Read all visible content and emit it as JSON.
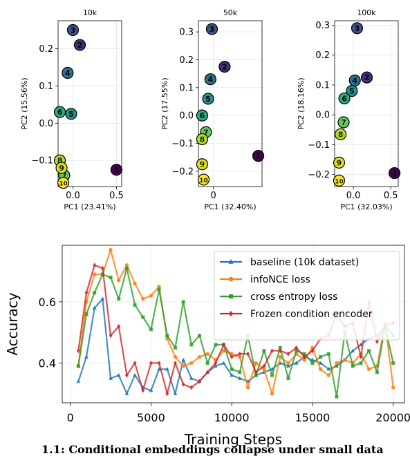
{
  "chart_data": [
    {
      "type": "scatter",
      "title": "10k",
      "xlabel": "PC1 (23.41%)",
      "ylabel": "PC2 (15.56%)",
      "xlim": [
        -0.17,
        0.56
      ],
      "ylim": [
        -0.17,
        0.275
      ],
      "xticks": [
        0,
        0.5
      ],
      "xtick_labels": [
        "0.0",
        "0.5"
      ],
      "yticks": [
        -0.1,
        0,
        0.1,
        0.2
      ],
      "ytick_labels": [
        "−0.1",
        "0.0",
        "0.1",
        "0.2"
      ],
      "grid": true,
      "points": [
        {
          "label": "1",
          "x": 0.5,
          "y": -0.125,
          "color": "#440154"
        },
        {
          "label": "2",
          "x": 0.08,
          "y": 0.21,
          "color": "#472d7b"
        },
        {
          "label": "3",
          "x": 0.0,
          "y": 0.25,
          "color": "#3b528b"
        },
        {
          "label": "4",
          "x": -0.06,
          "y": 0.135,
          "color": "#2c728e"
        },
        {
          "label": "5",
          "x": -0.02,
          "y": 0.025,
          "color": "#21918c"
        },
        {
          "label": "6",
          "x": -0.15,
          "y": 0.03,
          "color": "#28ae80"
        },
        {
          "label": "7",
          "x": -0.1,
          "y": -0.14,
          "color": "#5ec962"
        },
        {
          "label": "8",
          "x": -0.15,
          "y": -0.1,
          "color": "#addc30"
        },
        {
          "label": "9",
          "x": -0.13,
          "y": -0.12,
          "color": "#d8e219"
        },
        {
          "label": "10",
          "x": -0.11,
          "y": -0.16,
          "color": "#fde725"
        }
      ]
    },
    {
      "type": "scatter",
      "title": "50k",
      "xlabel": "PC1 (32.40%)",
      "ylabel": "PC2 (17.55%)",
      "xlim": [
        -0.2,
        0.65
      ],
      "ylim": [
        -0.255,
        0.34
      ],
      "xticks": [
        0
      ],
      "xtick_labels": [
        "0"
      ],
      "yticks": [
        -0.2,
        -0.1,
        0,
        0.1,
        0.2,
        0.3
      ],
      "ytick_labels": [
        "−0.2",
        "−0.1",
        "0.0",
        "0.1",
        "0.2",
        "0.3"
      ],
      "grid": true,
      "points": [
        {
          "label": "1",
          "x": 0.6,
          "y": -0.145,
          "color": "#440154"
        },
        {
          "label": "2",
          "x": 0.15,
          "y": 0.175,
          "color": "#472d7b"
        },
        {
          "label": "3",
          "x": -0.02,
          "y": 0.31,
          "color": "#3b528b"
        },
        {
          "label": "4",
          "x": -0.04,
          "y": 0.13,
          "color": "#2c728e"
        },
        {
          "label": "5",
          "x": -0.07,
          "y": 0.06,
          "color": "#21918c"
        },
        {
          "label": "6",
          "x": -0.15,
          "y": 0.0,
          "color": "#28ae80"
        },
        {
          "label": "7",
          "x": -0.1,
          "y": -0.06,
          "color": "#5ec962"
        },
        {
          "label": "8",
          "x": -0.15,
          "y": -0.085,
          "color": "#addc30"
        },
        {
          "label": "9",
          "x": -0.15,
          "y": -0.175,
          "color": "#d8e219"
        },
        {
          "label": "10",
          "x": -0.13,
          "y": -0.23,
          "color": "#fde725"
        }
      ]
    },
    {
      "type": "scatter",
      "title": "100k",
      "xlabel": "PC1 (32.03%)",
      "ylabel": "PC2 (18.16%)",
      "xlim": [
        -0.25,
        0.6
      ],
      "ylim": [
        -0.24,
        0.315
      ],
      "xticks": [
        0,
        0.5
      ],
      "xtick_labels": [
        "0.0",
        "0.5"
      ],
      "yticks": [
        -0.2,
        -0.1,
        0,
        0.1,
        0.2,
        0.3
      ],
      "ytick_labels": [
        "−0.2",
        "−0.1",
        "0.0",
        "0.1",
        "0.2",
        "0.3"
      ],
      "grid": true,
      "points": [
        {
          "label": "1",
          "x": 0.55,
          "y": -0.195,
          "color": "#440154"
        },
        {
          "label": "2",
          "x": 0.18,
          "y": 0.125,
          "color": "#472d7b"
        },
        {
          "label": "3",
          "x": 0.05,
          "y": 0.29,
          "color": "#3b528b"
        },
        {
          "label": "4",
          "x": 0.02,
          "y": 0.115,
          "color": "#2c728e"
        },
        {
          "label": "5",
          "x": -0.02,
          "y": 0.08,
          "color": "#21918c"
        },
        {
          "label": "6",
          "x": -0.12,
          "y": 0.055,
          "color": "#28ae80"
        },
        {
          "label": "7",
          "x": -0.13,
          "y": -0.025,
          "color": "#5ec962"
        },
        {
          "label": "8",
          "x": -0.17,
          "y": -0.065,
          "color": "#addc30"
        },
        {
          "label": "9",
          "x": -0.19,
          "y": -0.16,
          "color": "#d8e219"
        },
        {
          "label": "10",
          "x": -0.19,
          "y": -0.22,
          "color": "#fde725"
        }
      ]
    },
    {
      "type": "line",
      "xlabel": "Training Steps",
      "ylabel": "Accuracy",
      "xlim": [
        -500,
        20700
      ],
      "ylim": [
        0.27,
        0.785
      ],
      "xticks": [
        0,
        5000,
        10000,
        15000,
        20000
      ],
      "xtick_labels": [
        "0",
        "5000",
        "10000",
        "15000",
        "20000"
      ],
      "yticks": [
        0.4,
        0.6
      ],
      "ytick_labels": [
        "0.4",
        "0.6"
      ],
      "grid": true,
      "legend_position": "upper-right",
      "x": [
        500,
        1000,
        1500,
        2000,
        2500,
        3000,
        3500,
        4000,
        4500,
        5000,
        5500,
        6000,
        6500,
        7000,
        7500,
        8000,
        8500,
        9000,
        9500,
        10000,
        10500,
        11000,
        11500,
        12000,
        12500,
        13000,
        13500,
        14000,
        14500,
        15000,
        15500,
        16000,
        16500,
        17000,
        17500,
        18000,
        18500,
        19000,
        19500,
        20000
      ],
      "series": [
        {
          "name": "baseline (10k dataset)",
          "color": "#1f77b4",
          "marker": "triangle",
          "values": [
            0.34,
            0.42,
            0.58,
            0.61,
            0.35,
            0.36,
            0.3,
            0.36,
            0.32,
            0.31,
            0.38,
            0.38,
            0.3,
            0.41,
            0.35,
            0.34,
            0.37,
            0.39,
            0.4,
            0.36,
            0.35,
            0.34,
            0.36,
            0.37,
            0.38,
            0.4,
            0.39,
            0.4,
            0.42,
            0.41,
            0.4,
            0.38,
            0.39,
            0.41,
            0.44,
            0.46,
            0.48,
            0.49,
            0.52,
            0.49
          ]
        },
        {
          "name": "infoNCE loss",
          "color": "#ff7f0e",
          "marker": "circle",
          "values": [
            0.39,
            0.6,
            0.69,
            0.69,
            0.77,
            0.67,
            0.72,
            0.66,
            0.61,
            0.62,
            0.65,
            0.48,
            0.42,
            0.39,
            0.4,
            0.42,
            0.43,
            0.41,
            0.44,
            0.43,
            0.42,
            0.32,
            0.4,
            0.38,
            0.3,
            0.42,
            0.4,
            0.43,
            0.41,
            0.45,
            0.38,
            0.36,
            0.4,
            0.41,
            0.4,
            0.43,
            0.38,
            0.39,
            0.53,
            0.32
          ]
        },
        {
          "name": "cross entropy loss",
          "color": "#2ca02c",
          "marker": "square",
          "values": [
            0.39,
            0.56,
            0.63,
            0.69,
            0.68,
            0.61,
            0.71,
            0.59,
            0.55,
            0.51,
            0.64,
            0.49,
            0.45,
            0.6,
            0.46,
            0.49,
            0.4,
            0.46,
            0.46,
            0.38,
            0.37,
            0.49,
            0.36,
            0.44,
            0.36,
            0.45,
            0.35,
            0.44,
            0.43,
            0.4,
            0.42,
            0.43,
            0.29,
            0.5,
            0.39,
            0.4,
            0.44,
            0.37,
            0.52,
            0.4
          ]
        },
        {
          "name": "Frozen condition encoder",
          "color": "#d62728",
          "marker": "diamond",
          "values": [
            0.44,
            0.63,
            0.72,
            0.71,
            0.49,
            0.52,
            0.36,
            0.4,
            0.31,
            0.4,
            0.4,
            0.3,
            0.4,
            0.33,
            0.32,
            0.34,
            0.37,
            0.4,
            0.46,
            0.42,
            0.43,
            0.43,
            0.37,
            0.39,
            0.44,
            0.44,
            0.43,
            0.45,
            0.42,
            0.44,
            0.48,
            0.49,
            0.56,
            0.52,
            0.53,
            0.42,
            0.6,
            0.47,
            0.52,
            0.53
          ]
        }
      ]
    }
  ],
  "caption": "1.1: Conditional embeddings collapse under small data"
}
